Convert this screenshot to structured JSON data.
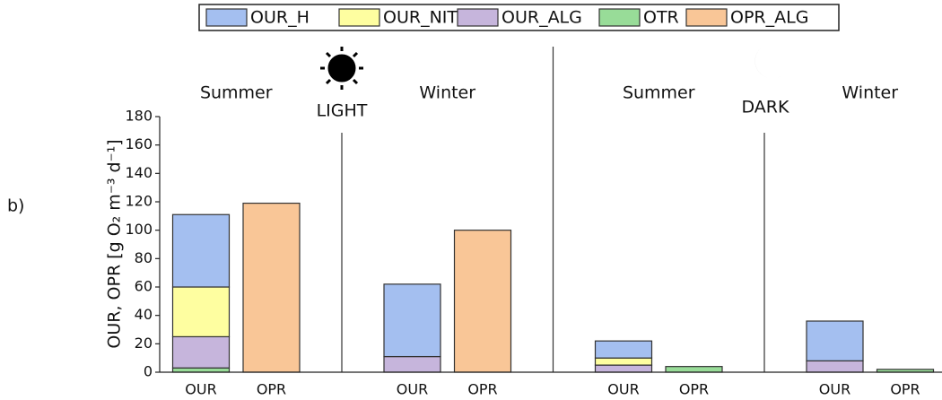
{
  "chart_data": {
    "type": "stacked_bar",
    "panel_label": "b)",
    "ylabel": "OUR, OPR [g O₂ m⁻³ d⁻¹]",
    "categories": [
      "OUR",
      "OPR",
      null,
      "OUR",
      "OPR",
      null,
      "OUR",
      "OPR",
      null,
      "OUR",
      "OPR"
    ],
    "groups": [
      "Summer",
      "Winter",
      "Summer",
      "Winter"
    ],
    "sections": [
      "LIGHT",
      "DARK"
    ],
    "series": [
      {
        "name": "OUR_H",
        "color": "#a4bff0",
        "values": [
          51,
          null,
          null,
          51,
          null,
          null,
          12,
          null,
          null,
          28,
          null
        ]
      },
      {
        "name": "OUR_NIT",
        "color": "#fefea0",
        "values": [
          35,
          null,
          null,
          null,
          null,
          null,
          5,
          null,
          null,
          null,
          null
        ]
      },
      {
        "name": "OUR_ALG",
        "color": "#c6b5dc",
        "values": [
          22,
          null,
          null,
          11,
          null,
          null,
          5,
          null,
          null,
          8,
          null
        ]
      },
      {
        "name": "OTR",
        "color": "#98dc98",
        "values": [
          3,
          null,
          null,
          null,
          null,
          null,
          null,
          4,
          null,
          null,
          2
        ]
      },
      {
        "name": "OPR_ALG",
        "color": "#f9c697",
        "values": [
          null,
          119,
          null,
          null,
          100,
          null,
          null,
          null,
          null,
          null,
          null
        ]
      }
    ],
    "ylim": [
      0,
      180
    ],
    "yticks": [
      0,
      20,
      40,
      60,
      80,
      100,
      120,
      140,
      160,
      180
    ]
  }
}
